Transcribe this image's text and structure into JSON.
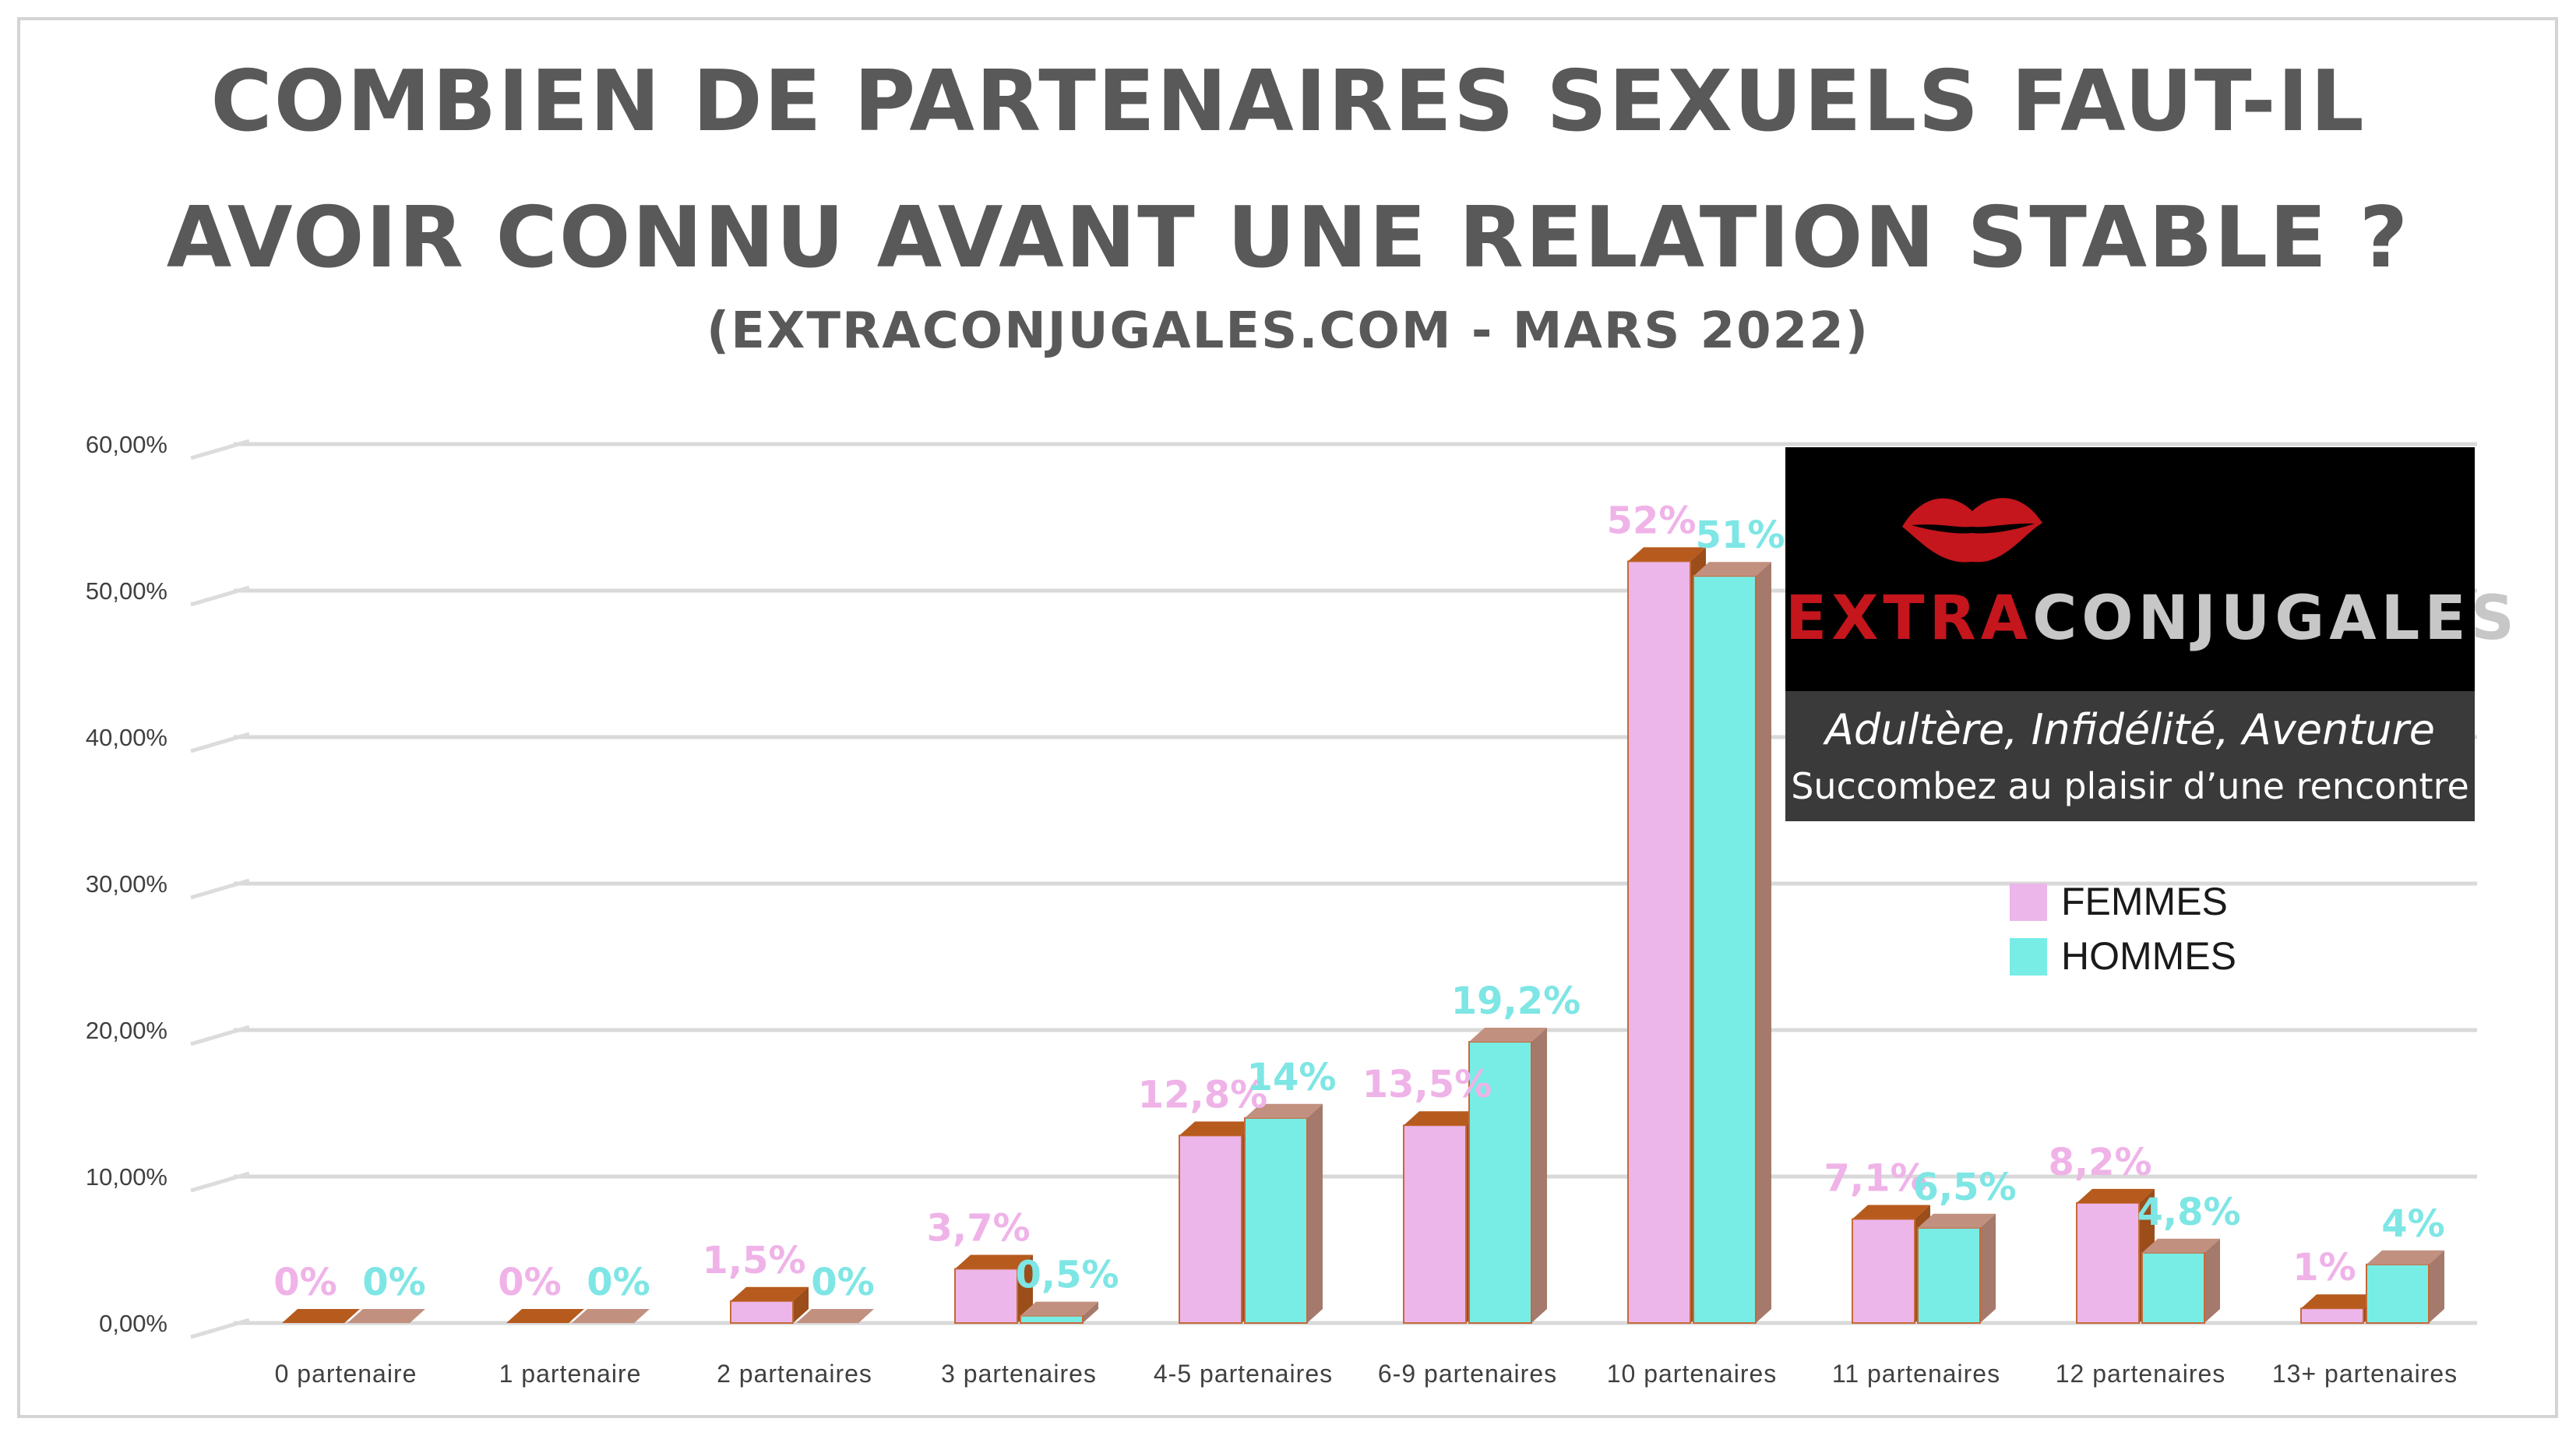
{
  "chart_data": {
    "type": "bar",
    "title_lines": [
      "COMBIEN DE PARTENAIRES SEXUELS FAUT-IL",
      "AVOIR CONNU AVANT UNE RELATION STABLE ?"
    ],
    "subtitle": "(EXTRACONJUGALES.COM  - MARS 2022)",
    "categories": [
      "0 partenaire",
      "1 partenaire",
      "2 partenaires",
      "3 partenaires",
      "4-5 partenaires",
      "6-9 partenaires",
      "10 partenaires",
      "11 partenaires",
      "12 partenaires",
      "13+ partenaires"
    ],
    "series": [
      {
        "name": "FEMMES",
        "color": "#ecb6ea",
        "top_color": "#b65a1e",
        "values": [
          0,
          0,
          1.5,
          3.7,
          12.8,
          13.5,
          52,
          7.1,
          8.2,
          1
        ],
        "labels": [
          "0%",
          "0%",
          "1,5%",
          "3,7%",
          "12,8%",
          "13,5%",
          "52%",
          "7,1%",
          "8,2%",
          "1%"
        ],
        "label_color": "#efb3e8"
      },
      {
        "name": "HOMMES",
        "color": "#77ede6",
        "top_color": "#c2907f",
        "values": [
          0,
          0,
          0,
          0.5,
          14,
          19.2,
          51,
          6.5,
          4.8,
          4
        ],
        "labels": [
          "0%",
          "0%",
          "0%",
          "0,5%",
          "14%",
          "19,2%",
          "51%",
          "6,5%",
          "4,8%",
          "4%"
        ],
        "label_color": "#7ee6e4"
      }
    ],
    "ylim": [
      0,
      60
    ],
    "yticks": [
      "0,00%",
      "10,00%",
      "20,00%",
      "30,00%",
      "40,00%",
      "50,00%",
      "60,00%"
    ],
    "grid": true,
    "legend_position": "right"
  },
  "brand": {
    "logo_part1": "EXTRA",
    "logo_part2": "CONJUGALES",
    "tagline1": "Adultère, Infidélité, Aventure",
    "tagline2": "Succombez au plaisir d’une rencontre"
  },
  "legend": {
    "items": [
      {
        "label": "FEMMES",
        "color": "#ecb6ea"
      },
      {
        "label": "HOMMES",
        "color": "#77ede6"
      }
    ]
  }
}
